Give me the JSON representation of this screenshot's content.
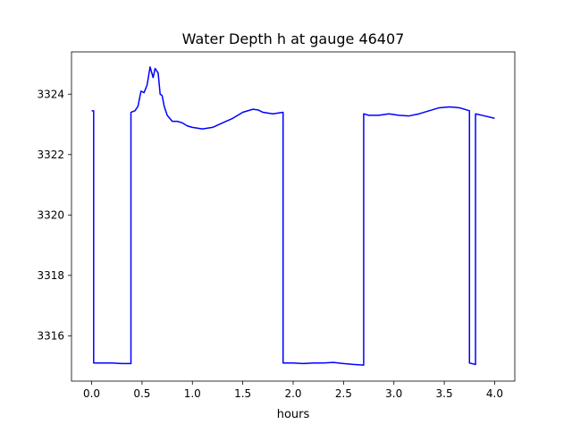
{
  "chart_data": {
    "type": "line",
    "title": "Water Depth h at gauge 46407",
    "xlabel": "hours",
    "ylabel": "",
    "xlim": [
      -0.2,
      4.2
    ],
    "ylim": [
      3314.5,
      3325.4
    ],
    "xticks": [
      0.0,
      0.5,
      1.0,
      1.5,
      2.0,
      2.5,
      3.0,
      3.5,
      4.0
    ],
    "xtick_labels": [
      "0.0",
      "0.5",
      "1.0",
      "1.5",
      "2.0",
      "2.5",
      "3.0",
      "3.5",
      "4.0"
    ],
    "yticks": [
      3316,
      3318,
      3320,
      3322,
      3324
    ],
    "ytick_labels": [
      "3316",
      "3318",
      "3320",
      "3322",
      "3324"
    ],
    "grid": false,
    "series": [
      {
        "color": "#0000ff",
        "x": [
          0.0,
          0.02,
          0.02,
          0.05,
          0.2,
          0.3,
          0.39,
          0.39,
          0.43,
          0.46,
          0.49,
          0.52,
          0.55,
          0.58,
          0.61,
          0.63,
          0.66,
          0.68,
          0.7,
          0.72,
          0.75,
          0.8,
          0.85,
          0.9,
          0.95,
          1.0,
          1.1,
          1.2,
          1.3,
          1.4,
          1.5,
          1.6,
          1.65,
          1.7,
          1.8,
          1.9,
          1.9,
          1.95,
          2.0,
          2.1,
          2.2,
          2.3,
          2.4,
          2.5,
          2.6,
          2.7,
          2.7,
          2.75,
          2.85,
          2.95,
          3.05,
          3.15,
          3.25,
          3.35,
          3.45,
          3.55,
          3.65,
          3.75,
          3.75,
          3.81,
          3.81,
          3.9,
          4.0
        ],
        "y": [
          3323.45,
          3323.45,
          3315.1,
          3315.1,
          3315.1,
          3315.08,
          3315.08,
          3323.4,
          3323.45,
          3323.6,
          3324.1,
          3324.05,
          3324.3,
          3324.9,
          3324.55,
          3324.85,
          3324.7,
          3324.0,
          3323.95,
          3323.6,
          3323.3,
          3323.1,
          3323.1,
          3323.05,
          3322.95,
          3322.9,
          3322.85,
          3322.9,
          3323.05,
          3323.2,
          3323.4,
          3323.5,
          3323.48,
          3323.4,
          3323.35,
          3323.4,
          3315.1,
          3315.1,
          3315.1,
          3315.08,
          3315.1,
          3315.1,
          3315.12,
          3315.08,
          3315.05,
          3315.03,
          3323.35,
          3323.3,
          3323.3,
          3323.35,
          3323.3,
          3323.28,
          3323.35,
          3323.45,
          3323.55,
          3323.58,
          3323.55,
          3323.45,
          3315.1,
          3315.05,
          3323.35,
          3323.28,
          3323.2
        ]
      }
    ]
  }
}
